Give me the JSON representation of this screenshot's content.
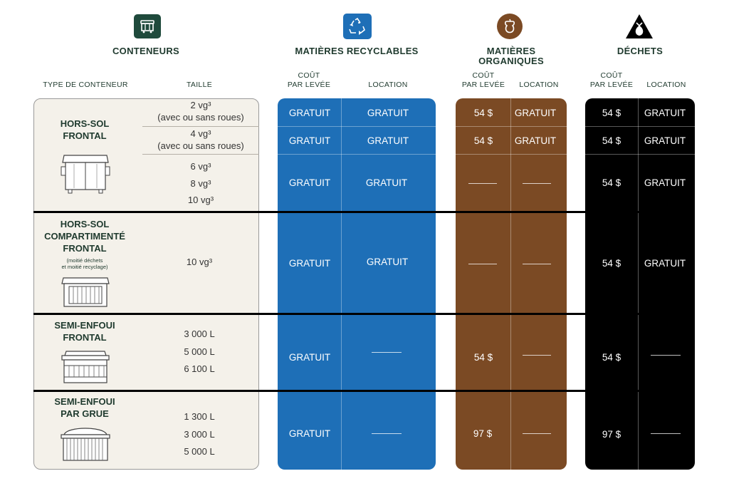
{
  "headers": {
    "containers": "CONTENEURS",
    "recyclables": "MATIÈRES RECYCLABLES",
    "organics_line1": "MATIÈRES",
    "organics_line2": "ORGANIQUES",
    "waste": "DÉCHETS"
  },
  "subheaders": {
    "type": "TYPE DE CONTENEUR",
    "size": "TAILLE",
    "cost_line1": "COÛT",
    "cost_line2": "PAR LEVÉE",
    "rental": "LOCATION"
  },
  "icons": {
    "containers": "dumpster-icon",
    "recyclables": "recycle-icon",
    "organics": "apple-core-icon",
    "waste": "trash-bag-icon"
  },
  "colors": {
    "recyclables": "#1e6fb7",
    "organics": "#7b4a24",
    "waste": "#000000",
    "header_text": "#1f3a2e",
    "left_panel": "#f4f1ea"
  },
  "rows": {
    "hors_sol_frontal": {
      "name_line1": "HORS-SOL",
      "name_line2": "FRONTAL",
      "size1a": "2 vg³",
      "size1b": "(avec ou sans roues)",
      "size2a": "4 vg³",
      "size2b": "(avec ou sans roues)",
      "size3": "6 vg³",
      "size4": "8 vg³",
      "size5": "10 vg³",
      "r1": {
        "rec_cost": "GRATUIT",
        "rec_loc": "GRATUIT",
        "org_cost": "54 $",
        "org_loc": "GRATUIT",
        "was_cost": "54 $",
        "was_loc": "GRATUIT"
      },
      "r2": {
        "rec_cost": "GRATUIT",
        "rec_loc": "GRATUIT",
        "org_cost": "54 $",
        "org_loc": "GRATUIT",
        "was_cost": "54 $",
        "was_loc": "GRATUIT"
      },
      "r3": {
        "rec_cost": "GRATUIT",
        "rec_loc": "GRATUIT",
        "was_cost": "54 $",
        "was_loc": "GRATUIT"
      }
    },
    "compartimente": {
      "name_line1": "HORS-SOL",
      "name_line2": "COMPARTIMENTÉ",
      "name_line3": "FRONTAL",
      "note_line1": "(moitié déchets",
      "note_line2": "et moitié recyclage)",
      "size": "10 vg³",
      "rec_cost": "GRATUIT",
      "rec_loc": "GRATUIT",
      "was_cost": "54 $",
      "was_loc": "GRATUIT"
    },
    "semi_enfoui_frontal": {
      "name_line1": "SEMI-ENFOUI",
      "name_line2": "FRONTAL",
      "size1": "3 000 L",
      "size2": "5 000 L",
      "size3": "6 100 L",
      "rec_cost": "GRATUIT",
      "org_cost": "54 $",
      "was_cost": "54 $"
    },
    "semi_enfoui_grue": {
      "name_line1": "SEMI-ENFOUI",
      "name_line2": "PAR GRUE",
      "size1": "1 300 L",
      "size2": "3 000 L",
      "size3": "5 000 L",
      "rec_cost": "GRATUIT",
      "org_cost": "97 $",
      "was_cost": "97 $"
    }
  }
}
